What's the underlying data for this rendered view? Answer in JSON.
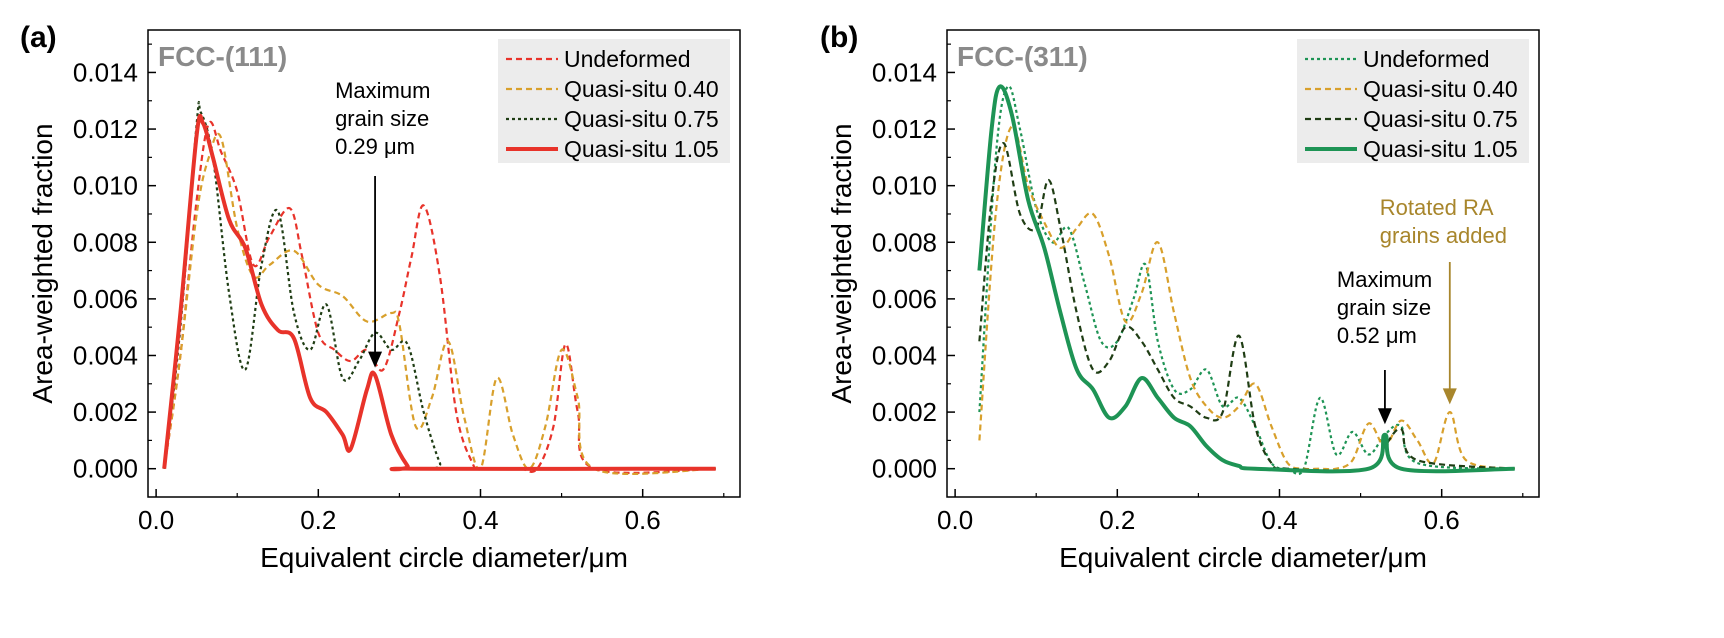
{
  "chart_data": [
    {
      "type": "line",
      "panel_label": "(a)",
      "title": "FCC-(111)",
      "xlabel": "Equivalent circle diameter/μm",
      "ylabel": "Area-weighted fraction",
      "xlim": [
        -0.01,
        0.72
      ],
      "ylim": [
        -0.001,
        0.0155
      ],
      "xticks": [
        "0.0",
        "0.2",
        "0.4",
        "0.6"
      ],
      "yticks": [
        "0.000",
        "0.002",
        "0.004",
        "0.006",
        "0.008",
        "0.010",
        "0.012",
        "0.014"
      ],
      "legend_position": "top-right",
      "series": [
        {
          "name": "Undeformed",
          "color": "#e8332a",
          "style": "dashed",
          "x": [
            0.01,
            0.03,
            0.05,
            0.065,
            0.08,
            0.1,
            0.12,
            0.14,
            0.165,
            0.18,
            0.2,
            0.22,
            0.24,
            0.26,
            0.28,
            0.3,
            0.315,
            0.33,
            0.35,
            0.37,
            0.39,
            0.4,
            0.43,
            0.45,
            0.47,
            0.49,
            0.505,
            0.52,
            0.54,
            0.69
          ],
          "y": [
            0,
            0.004,
            0.0095,
            0.0122,
            0.0112,
            0.0098,
            0.0072,
            0.0082,
            0.0092,
            0.0075,
            0.0048,
            0.0042,
            0.0038,
            0.0042,
            0.0035,
            0.0055,
            0.0075,
            0.0093,
            0.0068,
            0.002,
            0.0002,
            0,
            0,
            0,
            0,
            0.0015,
            0.0044,
            0.002,
            0,
            0
          ]
        },
        {
          "name": "Quasi-situ 0.40",
          "color": "#d8a02c",
          "style": "dashed",
          "x": [
            0.01,
            0.03,
            0.05,
            0.065,
            0.08,
            0.1,
            0.12,
            0.14,
            0.17,
            0.2,
            0.23,
            0.26,
            0.29,
            0.3,
            0.32,
            0.34,
            0.36,
            0.38,
            0.4,
            0.42,
            0.44,
            0.46,
            0.48,
            0.5,
            0.52,
            0.54,
            0.69
          ],
          "y": [
            0,
            0.004,
            0.009,
            0.011,
            0.0117,
            0.0085,
            0.0068,
            0.0072,
            0.0077,
            0.0065,
            0.0061,
            0.0052,
            0.0055,
            0.0051,
            0.0015,
            0.0025,
            0.0045,
            0.0018,
            0,
            0.0032,
            0.0012,
            0,
            0.0015,
            0.0042,
            0.0025,
            0,
            0
          ]
        },
        {
          "name": "Quasi-situ 0.75",
          "color": "#1f3d14",
          "style": "dotted",
          "x": [
            0.01,
            0.03,
            0.05,
            0.055,
            0.07,
            0.09,
            0.11,
            0.13,
            0.15,
            0.17,
            0.19,
            0.21,
            0.23,
            0.25,
            0.27,
            0.29,
            0.31,
            0.33,
            0.35,
            0.36,
            0.69
          ],
          "y": [
            0,
            0.005,
            0.0122,
            0.0126,
            0.011,
            0.0062,
            0.0035,
            0.0072,
            0.0091,
            0.0055,
            0.0042,
            0.0058,
            0.0032,
            0.0038,
            0.0048,
            0.0042,
            0.0044,
            0.002,
            0.0002,
            0,
            0
          ]
        },
        {
          "name": "Quasi-situ 1.05",
          "color": "#e8332a",
          "style": "solid",
          "x": [
            0.01,
            0.03,
            0.05,
            0.058,
            0.07,
            0.09,
            0.11,
            0.13,
            0.15,
            0.17,
            0.19,
            0.21,
            0.23,
            0.24,
            0.26,
            0.27,
            0.29,
            0.31,
            0.32,
            0.69
          ],
          "y": [
            0,
            0.0055,
            0.0118,
            0.0122,
            0.011,
            0.0088,
            0.0078,
            0.0058,
            0.0049,
            0.0046,
            0.0025,
            0.002,
            0.0012,
            0.0007,
            0.0028,
            0.0033,
            0.0012,
            0.0001,
            0,
            0
          ]
        }
      ],
      "annotations": [
        {
          "text": [
            "Maximum",
            "grain size",
            "0.29 μm"
          ],
          "color": "#000000",
          "x": 0.27,
          "y": 0.0035
        }
      ]
    },
    {
      "type": "line",
      "panel_label": "(b)",
      "title": "FCC-(311)",
      "xlabel": "Equivalent circle diameter/μm",
      "ylabel": "Area-weighted fraction",
      "xlim": [
        -0.01,
        0.72
      ],
      "ylim": [
        -0.001,
        0.0155
      ],
      "xticks": [
        "0.0",
        "0.2",
        "0.4",
        "0.6"
      ],
      "yticks": [
        "0.000",
        "0.002",
        "0.004",
        "0.006",
        "0.008",
        "0.010",
        "0.012",
        "0.014"
      ],
      "legend_position": "top-right",
      "series": [
        {
          "name": "Undeformed",
          "color": "#1e9455",
          "style": "dotted",
          "x": [
            0.03,
            0.05,
            0.065,
            0.08,
            0.1,
            0.12,
            0.14,
            0.16,
            0.18,
            0.2,
            0.22,
            0.235,
            0.25,
            0.27,
            0.29,
            0.31,
            0.33,
            0.35,
            0.37,
            0.39,
            0.41,
            0.43,
            0.45,
            0.47,
            0.49,
            0.51,
            0.53,
            0.55,
            0.57,
            0.69
          ],
          "y": [
            0.002,
            0.011,
            0.0135,
            0.012,
            0.0092,
            0.008,
            0.0085,
            0.0065,
            0.0045,
            0.0045,
            0.006,
            0.0072,
            0.0045,
            0.0028,
            0.0028,
            0.0035,
            0.0022,
            0.0025,
            0.0015,
            0.0002,
            0,
            0,
            0.0025,
            0.0005,
            0.0013,
            0.0005,
            0.0012,
            0.0015,
            0.0002,
            0
          ]
        },
        {
          "name": "Quasi-situ 0.40",
          "color": "#d8a02c",
          "style": "dashed",
          "x": [
            0.03,
            0.05,
            0.07,
            0.09,
            0.11,
            0.13,
            0.15,
            0.17,
            0.19,
            0.21,
            0.23,
            0.25,
            0.27,
            0.29,
            0.31,
            0.33,
            0.35,
            0.37,
            0.39,
            0.41,
            0.43,
            0.45,
            0.47,
            0.49,
            0.51,
            0.53,
            0.55,
            0.57,
            0.59,
            0.61,
            0.63,
            0.69
          ],
          "y": [
            0.001,
            0.009,
            0.0121,
            0.01,
            0.0087,
            0.0078,
            0.0085,
            0.009,
            0.0075,
            0.0052,
            0.0062,
            0.008,
            0.0055,
            0.0032,
            0.0022,
            0.0018,
            0.0022,
            0.003,
            0.0015,
            0.0002,
            0,
            0,
            0,
            0.0003,
            0.0016,
            0.0008,
            0.0017,
            0.001,
            0.0002,
            0.002,
            0.0003,
            0
          ]
        },
        {
          "name": "Quasi-situ 0.75",
          "color": "#1f3d14",
          "style": "dashed",
          "x": [
            0.03,
            0.045,
            0.06,
            0.08,
            0.1,
            0.115,
            0.13,
            0.15,
            0.17,
            0.19,
            0.21,
            0.23,
            0.25,
            0.27,
            0.29,
            0.31,
            0.33,
            0.35,
            0.37,
            0.39,
            0.41,
            0.51,
            0.53,
            0.55,
            0.57,
            0.69
          ],
          "y": [
            0.0045,
            0.0095,
            0.0115,
            0.009,
            0.0085,
            0.0102,
            0.0085,
            0.0055,
            0.0035,
            0.0038,
            0.005,
            0.0045,
            0.0035,
            0.0025,
            0.0022,
            0.0018,
            0.002,
            0.0047,
            0.0015,
            0.0002,
            0,
            0,
            0.0008,
            0.0014,
            0.0003,
            0
          ]
        },
        {
          "name": "Quasi-situ 1.05",
          "color": "#1e9455",
          "style": "solid",
          "x": [
            0.03,
            0.045,
            0.055,
            0.07,
            0.09,
            0.11,
            0.13,
            0.15,
            0.17,
            0.19,
            0.21,
            0.23,
            0.25,
            0.27,
            0.29,
            0.31,
            0.33,
            0.35,
            0.37,
            0.51,
            0.53,
            0.55,
            0.69
          ],
          "y": [
            0.007,
            0.012,
            0.0135,
            0.0125,
            0.0095,
            0.0078,
            0.0055,
            0.0035,
            0.0028,
            0.0018,
            0.0022,
            0.0032,
            0.0025,
            0.0018,
            0.0015,
            0.0008,
            0.0003,
            0.0001,
            0,
            0,
            0.0012,
            0,
            0
          ]
        }
      ],
      "annotations": [
        {
          "text": [
            "Maximum",
            "grain size",
            "0.52 μm"
          ],
          "color": "#000000",
          "x": 0.53,
          "y": 0.0015
        },
        {
          "text": [
            "Rotated RA",
            "grains added"
          ],
          "color": "#a8862c",
          "x": 0.61,
          "y": 0.0022
        }
      ]
    }
  ]
}
